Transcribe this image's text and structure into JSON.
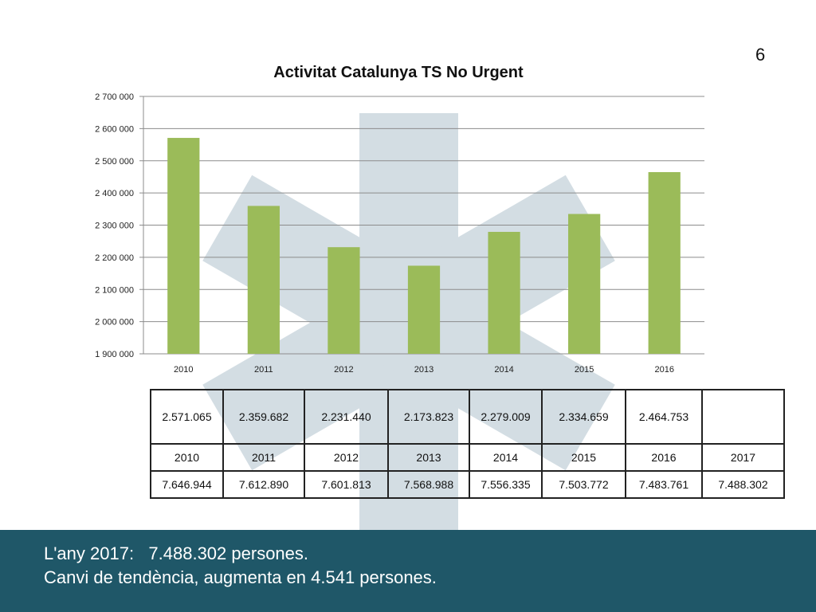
{
  "chart_data": {
    "type": "bar",
    "title": "Activitat Catalunya TS No Urgent",
    "xlabel": "",
    "ylabel": "",
    "categories": [
      "2010",
      "2011",
      "2012",
      "2013",
      "2014",
      "2015",
      "2016"
    ],
    "values": [
      2571065,
      2359682,
      2231440,
      2173823,
      2279009,
      2334659,
      2464753
    ],
    "ylim": [
      1900000,
      2700000
    ],
    "yticks": [
      "1 900 000",
      "2 000 000",
      "2 100 000",
      "2 200 000",
      "2 300 000",
      "2 400 000",
      "2 500 000",
      "2 600 000",
      "2 700 000"
    ],
    "bar_color": "#9bbb59",
    "grid": true,
    "legend": "none"
  },
  "table": {
    "values_row": [
      "2.571.065",
      "2.359.682",
      "2.231.440",
      "2.173.823",
      "2.279.009",
      "2.334.659",
      "2.464.753",
      ""
    ],
    "years_row": [
      "2010",
      "2011",
      "2012",
      "2013",
      "2014",
      "2015",
      "2016",
      "2017"
    ],
    "population_row": [
      "7.646.944",
      "7.612.890",
      "7.601.813",
      "7.568.988",
      "7.556.335",
      "7.503.772",
      "7.483.761",
      "7.488.302"
    ]
  },
  "footer": {
    "line1": "L'any 2017:   7.488.302 persones.",
    "line2": "Canvi de tendència, augmenta en 4.541 persones.",
    "slide_number": "6"
  },
  "colors": {
    "footer_background": "#1f5768",
    "watermark": "#d3dde3"
  }
}
